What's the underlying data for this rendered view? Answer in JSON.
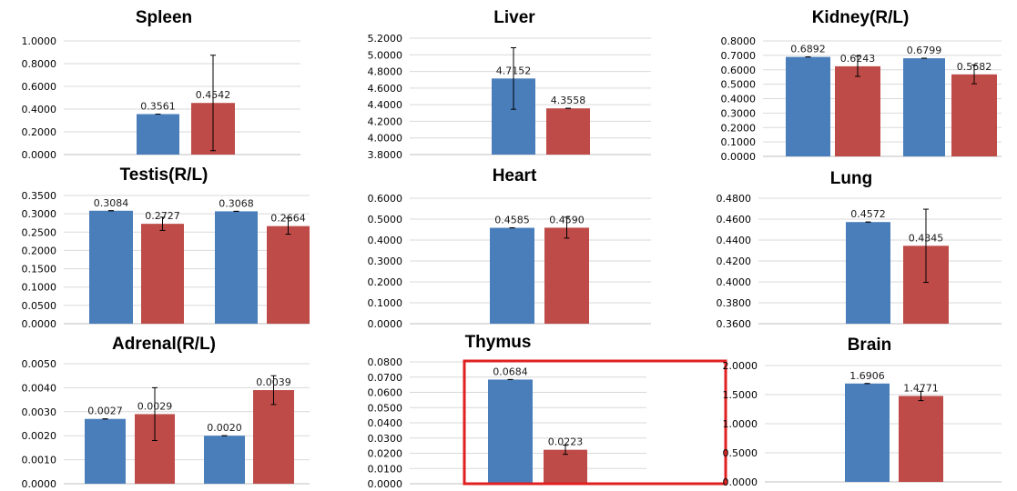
{
  "colors": {
    "series_a": "#4a7ebb",
    "series_b": "#be4b48",
    "highlight": "#e02020",
    "grid": "#d9d9d9",
    "axis": "#bfbfbf",
    "errorbar": "#000000"
  },
  "chart_data": [
    {
      "id": "spleen",
      "type": "bar",
      "title": "Spleen",
      "yticks": [
        "0.0000",
        "0.2000",
        "0.4000",
        "0.6000",
        "0.8000",
        "1.0000"
      ],
      "ylim": [
        0,
        1.0
      ],
      "ngroups": 1,
      "bars": [
        {
          "group": 0,
          "series": 0,
          "value": 0.3561,
          "label": "0.3561",
          "err": 0.0
        },
        {
          "group": 0,
          "series": 1,
          "value": 0.4542,
          "label": "0.4542",
          "err": 0.42
        }
      ]
    },
    {
      "id": "liver",
      "type": "bar",
      "title": "Liver",
      "yticks": [
        "3.8000",
        "4.0000",
        "4.2000",
        "4.4000",
        "4.6000",
        "4.8000",
        "5.0000",
        "5.2000"
      ],
      "ylim": [
        3.8,
        5.2
      ],
      "ngroups": 1,
      "bars": [
        {
          "group": 0,
          "series": 0,
          "value": 4.7152,
          "label": "4.7152",
          "err": 0.37
        },
        {
          "group": 0,
          "series": 1,
          "value": 4.3558,
          "label": "4.3558",
          "err": 0.0
        }
      ]
    },
    {
      "id": "kidney",
      "type": "bar",
      "title": "Kidney(R/L)",
      "yticks": [
        "0.0000",
        "0.1000",
        "0.2000",
        "0.3000",
        "0.4000",
        "0.5000",
        "0.6000",
        "0.7000",
        "0.8000"
      ],
      "ylim": [
        0,
        0.8
      ],
      "ngroups": 2,
      "bars": [
        {
          "group": 0,
          "series": 0,
          "value": 0.6892,
          "label": "0.6892",
          "err": 0.0
        },
        {
          "group": 0,
          "series": 1,
          "value": 0.6243,
          "label": "0.6243",
          "err": 0.07
        },
        {
          "group": 1,
          "series": 0,
          "value": 0.6799,
          "label": "0.6799",
          "err": 0.0
        },
        {
          "group": 1,
          "series": 1,
          "value": 0.5682,
          "label": "0.5682",
          "err": 0.065
        }
      ]
    },
    {
      "id": "testis",
      "type": "bar",
      "title": "Testis(R/L)",
      "yticks": [
        "0.0000",
        "0.0500",
        "0.1000",
        "0.1500",
        "0.2000",
        "0.2500",
        "0.3000",
        "0.3500"
      ],
      "ylim": [
        0,
        0.35
      ],
      "ngroups": 2,
      "bars": [
        {
          "group": 0,
          "series": 0,
          "value": 0.3084,
          "label": "0.3084",
          "err": 0.0
        },
        {
          "group": 0,
          "series": 1,
          "value": 0.2727,
          "label": "0.2727",
          "err": 0.018
        },
        {
          "group": 1,
          "series": 0,
          "value": 0.3068,
          "label": "0.3068",
          "err": 0.0
        },
        {
          "group": 1,
          "series": 1,
          "value": 0.2664,
          "label": "0.2664",
          "err": 0.022
        }
      ]
    },
    {
      "id": "heart",
      "type": "bar",
      "title": "Heart",
      "yticks": [
        "0.0000",
        "0.1000",
        "0.2000",
        "0.3000",
        "0.4000",
        "0.5000",
        "0.6000"
      ],
      "ylim": [
        0,
        0.6
      ],
      "ngroups": 1,
      "bars": [
        {
          "group": 0,
          "series": 0,
          "value": 0.4585,
          "label": "0.4585",
          "err": 0.0
        },
        {
          "group": 0,
          "series": 1,
          "value": 0.459,
          "label": "0.4590",
          "err": 0.05
        }
      ]
    },
    {
      "id": "lung",
      "type": "bar",
      "title": "Lung",
      "yticks": [
        "0.3600",
        "0.3800",
        "0.4000",
        "0.4200",
        "0.4400",
        "0.4600",
        "0.4800"
      ],
      "ylim": [
        0.36,
        0.48
      ],
      "ngroups": 1,
      "bars": [
        {
          "group": 0,
          "series": 0,
          "value": 0.4572,
          "label": "0.4572",
          "err": 0.0
        },
        {
          "group": 0,
          "series": 1,
          "value": 0.4345,
          "label": "0.4345",
          "err": 0.035
        }
      ]
    },
    {
      "id": "adrenal",
      "type": "bar",
      "title": "Adrenal(R/L)",
      "yticks": [
        "0.0000",
        "0.0010",
        "0.0020",
        "0.0030",
        "0.0040",
        "0.0050"
      ],
      "ylim": [
        0,
        0.005
      ],
      "ngroups": 2,
      "bars": [
        {
          "group": 0,
          "series": 0,
          "value": 0.0027,
          "label": "0.0027",
          "err": 0.0
        },
        {
          "group": 0,
          "series": 1,
          "value": 0.0029,
          "label": "0.0029",
          "err": 0.0011
        },
        {
          "group": 1,
          "series": 0,
          "value": 0.002,
          "label": "0.0020",
          "err": 0.0
        },
        {
          "group": 1,
          "series": 1,
          "value": 0.0039,
          "label": "0.0039",
          "err": 0.0006
        }
      ]
    },
    {
      "id": "thymus",
      "type": "bar",
      "title": "Thymus",
      "highlighted": true,
      "yticks": [
        "0.0000",
        "0.0100",
        "0.0200",
        "0.0300",
        "0.0400",
        "0.0500",
        "0.0600",
        "0.0700",
        "0.0800"
      ],
      "ylim": [
        0,
        0.08
      ],
      "ngroups": 1,
      "bars": [
        {
          "group": 0,
          "series": 0,
          "value": 0.0684,
          "label": "0.0684",
          "err": 0.0
        },
        {
          "group": 0,
          "series": 1,
          "value": 0.0223,
          "label": "0.0223",
          "err": 0.003
        }
      ]
    },
    {
      "id": "brain",
      "type": "bar",
      "title": "Brain",
      "yticks": [
        "0.0000",
        "0.5000",
        "1.0000",
        "1.5000",
        "2.0000"
      ],
      "ylim": [
        0,
        2.0
      ],
      "ngroups": 1,
      "bars": [
        {
          "group": 0,
          "series": 0,
          "value": 1.6906,
          "label": "1.6906",
          "err": 0.0
        },
        {
          "group": 0,
          "series": 1,
          "value": 1.4771,
          "label": "1.4771",
          "err": 0.08
        }
      ]
    }
  ]
}
